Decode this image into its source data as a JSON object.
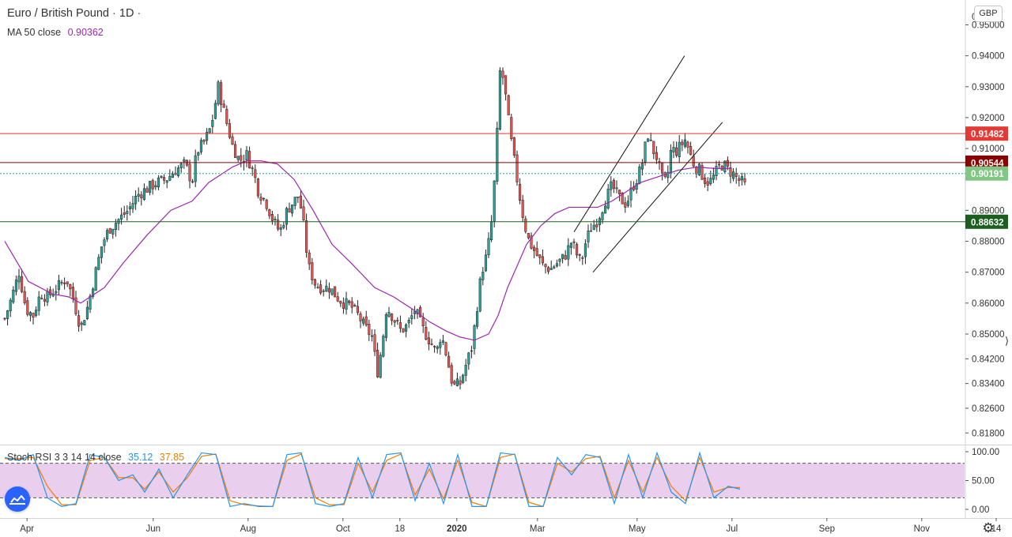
{
  "header": {
    "symbol": "Euro / British Pound",
    "separator": "·",
    "interval": "1D",
    "ma_label": "MA 50 close",
    "ma_value": "0.90362",
    "stoch_label": "Stoch RSI 3 3 14 14 close",
    "stoch_k_value": "35.12",
    "stoch_d_value": "37.85"
  },
  "currency_button": "GBP",
  "colors": {
    "up": "#26a69a",
    "down": "#ef5350",
    "ma": "#9c27b0",
    "k_line": "#2196f3",
    "d_line": "#f57c00",
    "red_level": "#e53935",
    "dark_red_level": "#8b0000",
    "green_level": "#1b5e20",
    "current": "#81c784",
    "stoch_band": "#e1bee7"
  },
  "chart_data": {
    "type": "candlestick",
    "symbol": "Euro / British Pound",
    "interval": "1D",
    "y_axis": {
      "range": [
        0.815,
        0.9565
      ],
      "ticks": [
        "0.95000",
        "0.94000",
        "0.93000",
        "0.92000",
        "0.91000",
        "0.89000",
        "0.88000",
        "0.87000",
        "0.86000",
        "0.85000",
        "0.84200",
        "0.83400",
        "0.82600",
        "0.81800"
      ],
      "top_cut_label": "0"
    },
    "x_axis": {
      "labels": [
        "Apr",
        "Jun",
        "Aug",
        "Oct",
        "18",
        "2020",
        "Mar",
        "May",
        "Jul",
        "Sep",
        "Nov",
        "14"
      ],
      "positions": [
        0.47,
        3.13,
        5.13,
        7.13,
        8.33,
        9.53,
        11.23,
        13.33,
        15.33,
        17.33,
        19.33,
        20.9
      ]
    },
    "close_path": [
      [
        0,
        0.855
      ],
      [
        0.15,
        0.862
      ],
      [
        0.3,
        0.87
      ],
      [
        0.45,
        0.858
      ],
      [
        0.6,
        0.856
      ],
      [
        0.75,
        0.863
      ],
      [
        0.9,
        0.862
      ],
      [
        1.1,
        0.865
      ],
      [
        1.3,
        0.868
      ],
      [
        1.45,
        0.861
      ],
      [
        1.6,
        0.852
      ],
      [
        1.75,
        0.859
      ],
      [
        1.9,
        0.869
      ],
      [
        2.05,
        0.879
      ],
      [
        2.2,
        0.884
      ],
      [
        2.4,
        0.887
      ],
      [
        2.6,
        0.89
      ],
      [
        2.8,
        0.895
      ],
      [
        3.0,
        0.897
      ],
      [
        3.2,
        0.899
      ],
      [
        3.4,
        0.9
      ],
      [
        3.6,
        0.903
      ],
      [
        3.8,
        0.905
      ],
      [
        3.95,
        0.899
      ],
      [
        4.05,
        0.909
      ],
      [
        4.2,
        0.912
      ],
      [
        4.35,
        0.917
      ],
      [
        4.5,
        0.93
      ],
      [
        4.65,
        0.92
      ],
      [
        4.8,
        0.911
      ],
      [
        4.95,
        0.906
      ],
      [
        5.1,
        0.908
      ],
      [
        5.25,
        0.902
      ],
      [
        5.35,
        0.896
      ],
      [
        5.5,
        0.893
      ],
      [
        5.65,
        0.887
      ],
      [
        5.8,
        0.883
      ],
      [
        5.95,
        0.89
      ],
      [
        6.1,
        0.893
      ],
      [
        6.2,
        0.895
      ],
      [
        6.3,
        0.885
      ],
      [
        6.4,
        0.872
      ],
      [
        6.55,
        0.866
      ],
      [
        6.7,
        0.865
      ],
      [
        6.85,
        0.865
      ],
      [
        7.0,
        0.862
      ],
      [
        7.15,
        0.86
      ],
      [
        7.3,
        0.859
      ],
      [
        7.45,
        0.856
      ],
      [
        7.6,
        0.852
      ],
      [
        7.75,
        0.849
      ],
      [
        7.85,
        0.837
      ],
      [
        7.95,
        0.846
      ],
      [
        8.05,
        0.859
      ],
      [
        8.2,
        0.855
      ],
      [
        8.35,
        0.851
      ],
      [
        8.5,
        0.853
      ],
      [
        8.65,
        0.858
      ],
      [
        8.8,
        0.852
      ],
      [
        8.95,
        0.848
      ],
      [
        9.1,
        0.844
      ],
      [
        9.2,
        0.85
      ],
      [
        9.3,
        0.844
      ],
      [
        9.45,
        0.833
      ],
      [
        9.6,
        0.834
      ],
      [
        9.7,
        0.839
      ],
      [
        9.85,
        0.846
      ],
      [
        9.95,
        0.858
      ],
      [
        10.05,
        0.87
      ],
      [
        10.15,
        0.875
      ],
      [
        10.25,
        0.884
      ],
      [
        10.35,
        0.905
      ],
      [
        10.45,
        0.938
      ],
      [
        10.55,
        0.928
      ],
      [
        10.65,
        0.915
      ],
      [
        10.75,
        0.905
      ],
      [
        10.85,
        0.895
      ],
      [
        10.95,
        0.886
      ],
      [
        11.05,
        0.88
      ],
      [
        11.2,
        0.876
      ],
      [
        11.35,
        0.872
      ],
      [
        11.5,
        0.871
      ],
      [
        11.65,
        0.873
      ],
      [
        11.8,
        0.875
      ],
      [
        11.95,
        0.88
      ],
      [
        12.05,
        0.876
      ],
      [
        12.15,
        0.873
      ],
      [
        12.25,
        0.88
      ],
      [
        12.35,
        0.884
      ],
      [
        12.5,
        0.887
      ],
      [
        12.65,
        0.893
      ],
      [
        12.8,
        0.898
      ],
      [
        12.95,
        0.894
      ],
      [
        13.1,
        0.892
      ],
      [
        13.25,
        0.898
      ],
      [
        13.35,
        0.901
      ],
      [
        13.45,
        0.906
      ],
      [
        13.55,
        0.915
      ],
      [
        13.65,
        0.91
      ],
      [
        13.75,
        0.907
      ],
      [
        13.85,
        0.9
      ],
      [
        13.95,
        0.899
      ],
      [
        14.05,
        0.91
      ],
      [
        14.15,
        0.909
      ],
      [
        14.25,
        0.911
      ],
      [
        14.35,
        0.913
      ],
      [
        14.45,
        0.908
      ],
      [
        14.55,
        0.904
      ],
      [
        14.65,
        0.903
      ],
      [
        14.75,
        0.9
      ],
      [
        14.85,
        0.899
      ],
      [
        14.95,
        0.901
      ],
      [
        15.05,
        0.904
      ],
      [
        15.15,
        0.905
      ],
      [
        15.25,
        0.903
      ],
      [
        15.35,
        0.902
      ],
      [
        15.45,
        0.9
      ],
      [
        15.55,
        0.899
      ],
      [
        15.65,
        0.897
      ]
    ],
    "ma50_path": [
      [
        0,
        0.88
      ],
      [
        0.5,
        0.867
      ],
      [
        1.0,
        0.863
      ],
      [
        1.35,
        0.862
      ],
      [
        1.6,
        0.86
      ],
      [
        2.1,
        0.865
      ],
      [
        2.5,
        0.873
      ],
      [
        3.0,
        0.882
      ],
      [
        3.5,
        0.89
      ],
      [
        3.95,
        0.893
      ],
      [
        4.3,
        0.899
      ],
      [
        4.8,
        0.904
      ],
      [
        5.1,
        0.906
      ],
      [
        5.4,
        0.906
      ],
      [
        5.75,
        0.905
      ],
      [
        6.1,
        0.9
      ],
      [
        6.5,
        0.89
      ],
      [
        6.9,
        0.879
      ],
      [
        7.3,
        0.873
      ],
      [
        7.8,
        0.865
      ],
      [
        8.2,
        0.862
      ],
      [
        8.6,
        0.858
      ],
      [
        8.95,
        0.854
      ],
      [
        9.3,
        0.851
      ],
      [
        9.6,
        0.849
      ],
      [
        9.9,
        0.848
      ],
      [
        10.2,
        0.85
      ],
      [
        10.4,
        0.856
      ],
      [
        10.6,
        0.865
      ],
      [
        10.8,
        0.872
      ],
      [
        11.0,
        0.879
      ],
      [
        11.3,
        0.885
      ],
      [
        11.6,
        0.889
      ],
      [
        11.9,
        0.891
      ],
      [
        12.2,
        0.891
      ],
      [
        12.5,
        0.891
      ],
      [
        12.8,
        0.893
      ],
      [
        13.1,
        0.896
      ],
      [
        13.4,
        0.899
      ],
      [
        13.8,
        0.901
      ],
      [
        14.2,
        0.903
      ],
      [
        14.6,
        0.904
      ],
      [
        15.0,
        0.9035
      ],
      [
        15.3,
        0.9036
      ]
    ],
    "moving_average": {
      "name": "MA 50 close",
      "last": 0.90362
    },
    "horizontal_levels": [
      {
        "price": 0.91482,
        "label": "0.91482",
        "style": "red"
      },
      {
        "price": 0.90544,
        "label": "0.90544",
        "style": "dark_red"
      },
      {
        "price": 0.90191,
        "label": "0.90191",
        "style": "current",
        "dashed": true
      },
      {
        "price": 0.88632,
        "label": "0.88632",
        "style": "green"
      }
    ],
    "trend_channel": [
      {
        "from": [
          12.0,
          0.883
        ],
        "to": [
          14.33,
          0.94
        ]
      },
      {
        "from": [
          12.4,
          0.87
        ],
        "to": [
          15.13,
          0.9185
        ]
      }
    ],
    "stoch_rsi": {
      "name": "Stoch RSI 3 3 14 14 close",
      "range": [
        0,
        100
      ],
      "ticks": [
        "100.00",
        "50.00",
        "0.00"
      ],
      "band": [
        20,
        80
      ],
      "k_last": 35.12,
      "d_last": 37.85,
      "k_path": [
        [
          0,
          90
        ],
        [
          0.3,
          85
        ],
        [
          0.6,
          95
        ],
        [
          0.9,
          20
        ],
        [
          1.2,
          5
        ],
        [
          1.5,
          10
        ],
        [
          1.8,
          95
        ],
        [
          2.1,
          90
        ],
        [
          2.4,
          50
        ],
        [
          2.7,
          60
        ],
        [
          2.95,
          30
        ],
        [
          3.25,
          70
        ],
        [
          3.55,
          20
        ],
        [
          3.85,
          60
        ],
        [
          4.15,
          98
        ],
        [
          4.45,
          95
        ],
        [
          4.75,
          5
        ],
        [
          5.05,
          10
        ],
        [
          5.35,
          5
        ],
        [
          5.65,
          5
        ],
        [
          5.95,
          95
        ],
        [
          6.25,
          98
        ],
        [
          6.55,
          10
        ],
        [
          6.85,
          5
        ],
        [
          7.15,
          10
        ],
        [
          7.45,
          90
        ],
        [
          7.75,
          20
        ],
        [
          8.05,
          95
        ],
        [
          8.35,
          98
        ],
        [
          8.65,
          15
        ],
        [
          8.95,
          80
        ],
        [
          9.25,
          10
        ],
        [
          9.55,
          95
        ],
        [
          9.85,
          5
        ],
        [
          10.15,
          5
        ],
        [
          10.45,
          98
        ],
        [
          10.75,
          95
        ],
        [
          11.05,
          5
        ],
        [
          11.35,
          5
        ],
        [
          11.65,
          90
        ],
        [
          11.95,
          60
        ],
        [
          12.25,
          95
        ],
        [
          12.55,
          90
        ],
        [
          12.85,
          10
        ],
        [
          13.15,
          95
        ],
        [
          13.45,
          20
        ],
        [
          13.75,
          98
        ],
        [
          14.05,
          30
        ],
        [
          14.35,
          10
        ],
        [
          14.65,
          98
        ],
        [
          14.95,
          20
        ],
        [
          15.25,
          40
        ],
        [
          15.5,
          35.12
        ]
      ],
      "d_path": [
        [
          0,
          88
        ],
        [
          0.3,
          88
        ],
        [
          0.6,
          90
        ],
        [
          0.9,
          40
        ],
        [
          1.2,
          8
        ],
        [
          1.5,
          8
        ],
        [
          1.8,
          85
        ],
        [
          2.1,
          90
        ],
        [
          2.4,
          55
        ],
        [
          2.7,
          55
        ],
        [
          2.95,
          35
        ],
        [
          3.25,
          65
        ],
        [
          3.55,
          30
        ],
        [
          3.85,
          55
        ],
        [
          4.15,
          92
        ],
        [
          4.45,
          96
        ],
        [
          4.75,
          15
        ],
        [
          5.05,
          8
        ],
        [
          5.35,
          6
        ],
        [
          5.65,
          5
        ],
        [
          5.95,
          85
        ],
        [
          6.25,
          96
        ],
        [
          6.55,
          20
        ],
        [
          6.85,
          8
        ],
        [
          7.15,
          8
        ],
        [
          7.45,
          80
        ],
        [
          7.75,
          30
        ],
        [
          8.05,
          85
        ],
        [
          8.35,
          96
        ],
        [
          8.65,
          25
        ],
        [
          8.95,
          70
        ],
        [
          9.25,
          18
        ],
        [
          9.55,
          85
        ],
        [
          9.85,
          12
        ],
        [
          10.15,
          5
        ],
        [
          10.45,
          90
        ],
        [
          10.75,
          96
        ],
        [
          11.05,
          12
        ],
        [
          11.35,
          5
        ],
        [
          11.65,
          80
        ],
        [
          11.95,
          65
        ],
        [
          12.25,
          88
        ],
        [
          12.55,
          92
        ],
        [
          12.85,
          20
        ],
        [
          13.15,
          85
        ],
        [
          13.45,
          30
        ],
        [
          13.75,
          90
        ],
        [
          14.05,
          40
        ],
        [
          14.35,
          15
        ],
        [
          14.65,
          90
        ],
        [
          14.95,
          30
        ],
        [
          15.25,
          38
        ],
        [
          15.5,
          37.85
        ]
      ]
    }
  }
}
